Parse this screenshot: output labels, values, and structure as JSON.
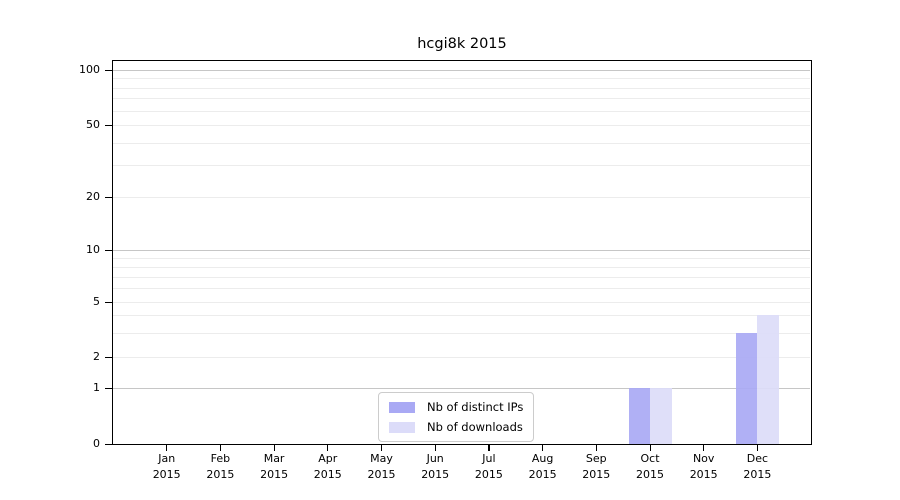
{
  "title": "hcgi8k 2015",
  "chart_data": {
    "type": "bar",
    "title": "hcgi8k 2015",
    "categories": [
      {
        "month": "Jan",
        "year": "2015"
      },
      {
        "month": "Feb",
        "year": "2015"
      },
      {
        "month": "Mar",
        "year": "2015"
      },
      {
        "month": "Apr",
        "year": "2015"
      },
      {
        "month": "May",
        "year": "2015"
      },
      {
        "month": "Jun",
        "year": "2015"
      },
      {
        "month": "Jul",
        "year": "2015"
      },
      {
        "month": "Aug",
        "year": "2015"
      },
      {
        "month": "Sep",
        "year": "2015"
      },
      {
        "month": "Oct",
        "year": "2015"
      },
      {
        "month": "Nov",
        "year": "2015"
      },
      {
        "month": "Dec",
        "year": "2015"
      }
    ],
    "series": [
      {
        "name": "Nb of distinct IPs",
        "color": "#a9a9f4",
        "values": [
          0,
          0,
          0,
          0,
          0,
          0,
          0,
          0,
          0,
          1,
          0,
          3
        ]
      },
      {
        "name": "Nb of downloads",
        "color": "#dcdcf9",
        "values": [
          0,
          0,
          0,
          0,
          0,
          0,
          0,
          0,
          0,
          1,
          0,
          4
        ]
      }
    ],
    "xlabel": "",
    "ylabel": "",
    "yscale": "symlog",
    "ylim": [
      0,
      100
    ],
    "y_tick_values": [
      0,
      1,
      2,
      5,
      10,
      20,
      50,
      100
    ],
    "y_gridlines_major": [
      1,
      10,
      100
    ],
    "y_gridlines_minor": [
      2,
      3,
      4,
      5,
      6,
      7,
      8,
      9,
      20,
      30,
      40,
      50,
      60,
      70,
      80,
      90
    ],
    "grid": true,
    "legend": {
      "position": "lower center",
      "entries": [
        "Nb of distinct IPs",
        "Nb of downloads"
      ]
    }
  }
}
